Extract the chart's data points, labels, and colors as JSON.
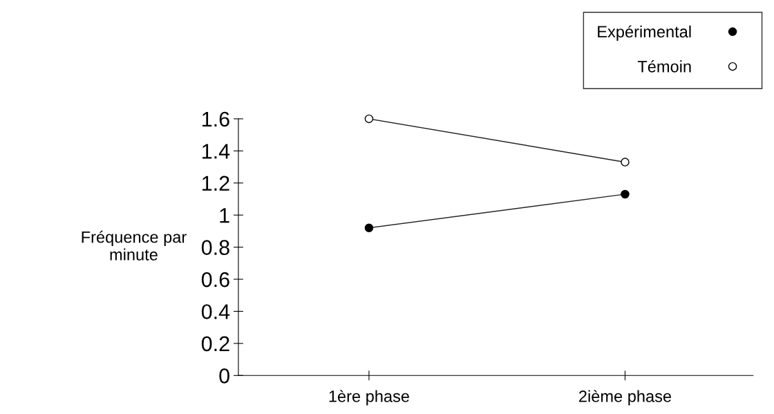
{
  "chart_data": {
    "type": "line",
    "ylabel": "Fréquence par\nminute",
    "categories": [
      "1ère phase",
      "2ième phase"
    ],
    "series": [
      {
        "name": "Expérimental",
        "color": "#000000",
        "values": [
          0.92,
          1.13
        ]
      },
      {
        "name": "Témoin",
        "color": "#ffffff",
        "values": [
          1.6,
          1.33
        ]
      }
    ],
    "ylim": [
      0,
      1.6
    ],
    "yticks": [
      0,
      0.2,
      0.4,
      0.6,
      0.8,
      1,
      1.2,
      1.4,
      1.6
    ],
    "grid": false,
    "legend": "top right",
    "marker": "circle",
    "line_style": "solid"
  }
}
